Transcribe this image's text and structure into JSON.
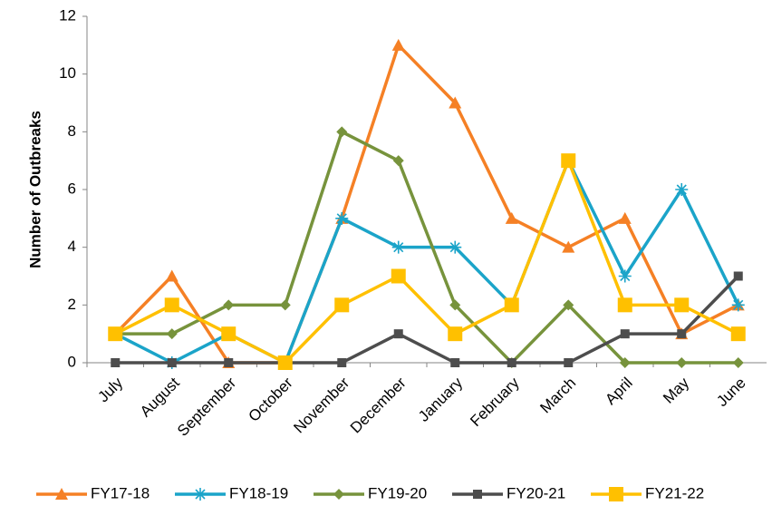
{
  "chart_data": {
    "type": "line",
    "y_label": "Number of Outbreaks",
    "categories": [
      "July",
      "August",
      "September",
      "October",
      "November",
      "December",
      "January",
      "February",
      "March",
      "April",
      "May",
      "June"
    ],
    "series": [
      {
        "name": "FY17-18",
        "color": "#f58025",
        "marker": "triangle",
        "values": [
          1,
          3,
          0,
          0,
          5,
          11,
          9,
          5,
          4,
          5,
          1,
          2
        ]
      },
      {
        "name": "FY18-19",
        "color": "#1ba4c9",
        "marker": "asterisk",
        "values": [
          1,
          0,
          1,
          0,
          5,
          4,
          4,
          2,
          7,
          3,
          6,
          2
        ]
      },
      {
        "name": "FY19-20",
        "color": "#77933c",
        "marker": "diamond",
        "values": [
          1,
          1,
          2,
          2,
          8,
          7,
          2,
          0,
          2,
          0,
          0,
          0
        ]
      },
      {
        "name": "FY20-21",
        "color": "#4d4d4d",
        "marker": "square",
        "values": [
          0,
          0,
          0,
          0,
          0,
          1,
          0,
          0,
          0,
          1,
          1,
          3
        ]
      },
      {
        "name": "FY21-22",
        "color": "#ffc000",
        "marker": "bigsquare",
        "values": [
          1,
          2,
          1,
          0,
          2,
          3,
          1,
          2,
          7,
          2,
          2,
          1
        ]
      }
    ],
    "ylim": [
      0,
      12
    ],
    "yticks": [
      0,
      2,
      4,
      6,
      8,
      10,
      12
    ],
    "grid": false,
    "legend": "bottom"
  }
}
